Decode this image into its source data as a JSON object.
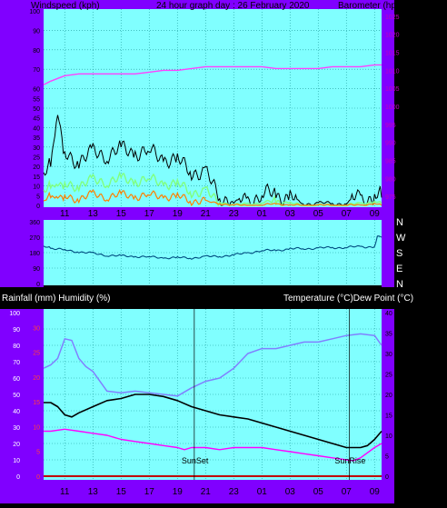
{
  "panel_top": {
    "left_title": "Windspeed (kph)",
    "center_title": "24 hour graph day : 26 February 2020",
    "right_title": "Barometer (hpa)",
    "left_ticks": [
      "0",
      "5",
      "10",
      "15",
      "20",
      "25",
      "30",
      "35",
      "40",
      "45",
      "50",
      "55",
      "60",
      "70",
      "80",
      "90",
      "100"
    ],
    "right_ticks": [
      "975",
      "980",
      "985",
      "990",
      "995",
      "1000",
      "1005",
      "1010",
      "1015",
      "1020",
      "1025"
    ]
  },
  "panel_mid": {
    "direction_labels": [
      "N",
      "W",
      "S",
      "E",
      "N"
    ],
    "left_ticks": [
      "0",
      "90",
      "180",
      "270",
      "360"
    ]
  },
  "panel_bot": {
    "left_title": "Rainfall (mm)  Humidity (%)",
    "right_title": "Temperature (°C)Dew Point (°C)",
    "humidity_ticks": [
      "0",
      "10",
      "20",
      "30",
      "40",
      "50",
      "60",
      "70",
      "80",
      "90",
      "100"
    ],
    "rain_ticks": [
      "0",
      "5",
      "10",
      "15",
      "20",
      "25",
      "30"
    ],
    "temp_ticks": [
      "0",
      "5",
      "10",
      "15",
      "20",
      "25",
      "30",
      "35",
      "40"
    ],
    "sunset_label": "SunSet",
    "sunrise_label": "SunRise"
  },
  "x_ticks": [
    "11",
    "13",
    "15",
    "17",
    "19",
    "21",
    "23",
    "01",
    "03",
    "05",
    "07",
    "09"
  ],
  "colors": {
    "frame": "#8000ff",
    "plot_bg": "#80ffff",
    "grid": "#1a9a9a",
    "wind_gust": "#000000",
    "wind_avg": "#80ff80",
    "wind_speed": "#ff8000",
    "barometer": "#ff40ff",
    "direction": "#004c80",
    "humidity": "#8080ff",
    "temperature": "#000000",
    "dewpoint": "#ff00ff",
    "rain": "#c00000"
  },
  "chart_data": {
    "type": "line",
    "x_hours": [
      "11",
      "13",
      "15",
      "17",
      "19",
      "21",
      "23",
      "01",
      "03",
      "05",
      "07",
      "09"
    ],
    "barometer_hpa": {
      "x": [
        9.5,
        10,
        11,
        12,
        13,
        14,
        15,
        16,
        17,
        18,
        19,
        20,
        21,
        22,
        23,
        24,
        25,
        26,
        27,
        28,
        29,
        30,
        31,
        32,
        33,
        33.5
      ],
      "y": [
        1006,
        1007,
        1008.5,
        1009,
        1009,
        1009,
        1009,
        1009,
        1009.5,
        1010,
        1010,
        1010.5,
        1011,
        1011,
        1011,
        1011,
        1011,
        1010.5,
        1010.5,
        1010.5,
        1010.5,
        1011,
        1011,
        1011,
        1011.5,
        1011.5
      ]
    },
    "wind_gust_kph": {
      "x": [
        9.5,
        10,
        10.5,
        11,
        12,
        13,
        14,
        15,
        16,
        17,
        18,
        19,
        20,
        21,
        22,
        23,
        24,
        25,
        26,
        27,
        28,
        29,
        30,
        31,
        32,
        33,
        33.5
      ],
      "y": [
        14,
        20,
        51,
        25,
        24,
        26,
        27,
        28,
        28,
        27,
        25,
        22,
        19,
        15,
        6,
        1,
        4,
        4,
        7,
        3,
        1,
        1,
        1,
        1,
        4,
        5,
        4
      ]
    },
    "wind_avg_kph": {
      "x": [
        9.5,
        10,
        10.5,
        11,
        12,
        13,
        14,
        15,
        16,
        17,
        18,
        19,
        20,
        21,
        22,
        23,
        24,
        25,
        26,
        27,
        28,
        29,
        30,
        31,
        32,
        33,
        33.5
      ],
      "y": [
        6,
        9,
        13,
        10,
        11,
        12,
        13,
        13,
        13,
        13,
        12,
        10,
        8,
        6,
        2,
        0,
        1,
        1,
        3,
        1,
        0,
        0,
        0,
        0,
        1,
        2,
        1
      ]
    },
    "wind_speed_kph": {
      "x": [
        9.5,
        10,
        10.5,
        11,
        12,
        13,
        14,
        15,
        16,
        17,
        18,
        19,
        20,
        21,
        22,
        23,
        24,
        25,
        26,
        27,
        28,
        29,
        30,
        31,
        32,
        33,
        33.5
      ],
      "y": [
        2,
        4,
        6,
        4,
        4,
        5,
        5,
        5,
        5,
        5,
        5,
        4,
        3,
        2,
        1,
        0,
        0,
        0,
        1,
        0,
        0,
        0,
        0,
        0,
        0,
        1,
        0
      ]
    },
    "wind_direction_deg": {
      "x": [
        9.5,
        10,
        11,
        12,
        13,
        14,
        15,
        16,
        17,
        18,
        19,
        20,
        21,
        22,
        23,
        24,
        25,
        26,
        27,
        28,
        29,
        30,
        31,
        32,
        33,
        33.2,
        33.5
      ],
      "y": [
        215,
        205,
        195,
        185,
        175,
        165,
        160,
        158,
        155,
        150,
        150,
        150,
        155,
        160,
        165,
        180,
        190,
        195,
        200,
        205,
        205,
        210,
        210,
        215,
        215,
        270,
        270
      ]
    },
    "humidity_pct": {
      "x": [
        9.5,
        10,
        10.5,
        11,
        11.5,
        12,
        12.5,
        13,
        13.5,
        14,
        15,
        16,
        17,
        18,
        19,
        20,
        21,
        22,
        23,
        24,
        25,
        26,
        27,
        28,
        29,
        30,
        31,
        32,
        33,
        33.5
      ],
      "y": [
        66,
        68,
        72,
        84,
        83,
        72,
        67,
        64,
        58,
        52,
        51,
        52,
        51,
        50,
        49,
        54,
        58,
        60,
        66,
        75,
        78,
        78,
        80,
        82,
        82,
        84,
        86,
        87,
        86,
        80
      ]
    },
    "temperature_c": {
      "x": [
        9.5,
        10,
        10.5,
        11,
        11.5,
        12,
        13,
        14,
        15,
        16,
        17,
        18,
        19,
        20,
        21,
        22,
        23,
        24,
        25,
        26,
        27,
        28,
        29,
        30,
        31,
        32,
        32.5,
        33,
        33.5
      ],
      "y": [
        18,
        18,
        17,
        15,
        14.5,
        15.5,
        17,
        18.5,
        19,
        20,
        20,
        19.5,
        18.5,
        17,
        16,
        15,
        14.5,
        14,
        13,
        12,
        11,
        10,
        9,
        8,
        7,
        7,
        7.5,
        9,
        11
      ]
    },
    "dewpoint_c": {
      "x": [
        9.5,
        10,
        11,
        12,
        13,
        14,
        15,
        16,
        17,
        18,
        19,
        19.5,
        20,
        21,
        22,
        23,
        24,
        25,
        26,
        27,
        28,
        29,
        30,
        31,
        31.5,
        32,
        33,
        33.5
      ],
      "y": [
        11,
        11,
        11.5,
        11,
        10.5,
        10,
        9,
        8.5,
        8,
        7.5,
        7,
        6.5,
        7,
        7,
        6.5,
        7,
        7,
        7,
        6.5,
        6,
        5.5,
        5,
        4.5,
        4,
        3.8,
        4.5,
        7,
        8
      ]
    },
    "rainfall_mm": {
      "x": [
        9.5,
        33.5
      ],
      "y": [
        0,
        0
      ]
    },
    "sunset_hour": 20.2,
    "sunrise_hour": 31.2
  }
}
